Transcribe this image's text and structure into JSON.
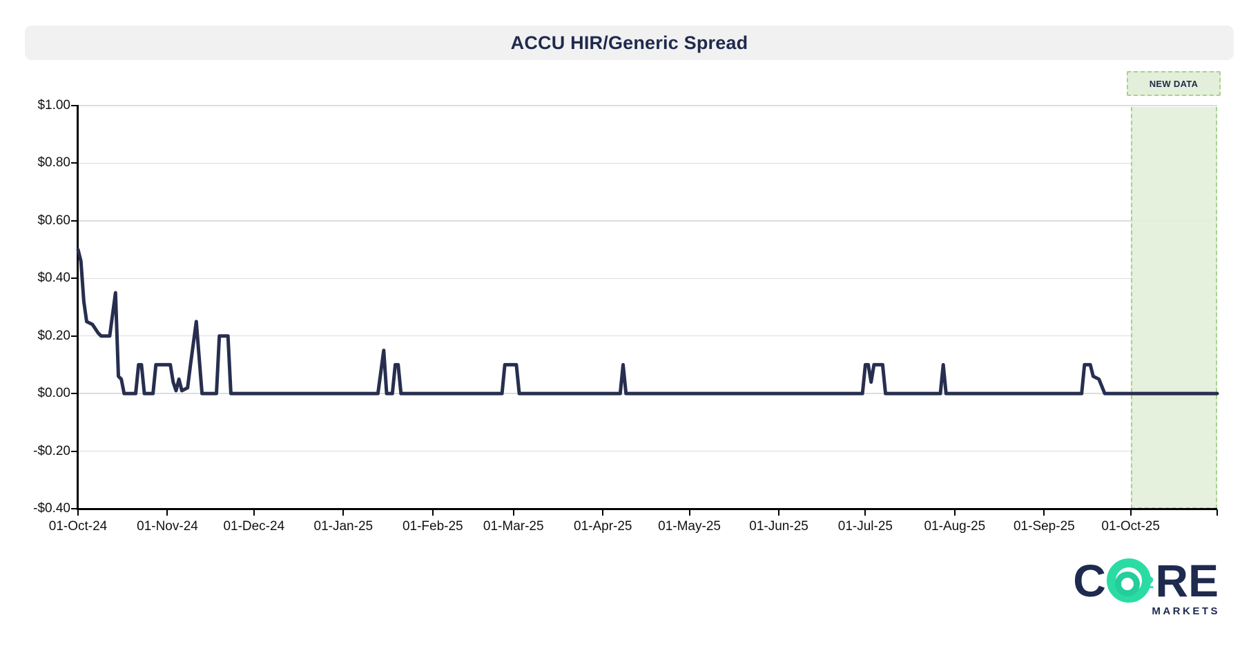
{
  "header": {
    "title": "ACCU HIR/Generic Spread"
  },
  "new_data_badge": {
    "label": "NEW DATA"
  },
  "logo": {
    "part1": "C",
    "subscript": "2",
    "part2": "RE",
    "tagline": "MARKETS"
  },
  "colors": {
    "line": "#272e4f",
    "grid": "#dcdcdc",
    "axis": "#000000",
    "banner_bg": "#f1f1f2",
    "title_text": "#1f2a4c",
    "region_fill": "#e3efda",
    "region_border": "#a6d28d",
    "badge_text": "#1f2a4c",
    "logo_navy": "#1e2a4e",
    "logo_green": "#2adca4"
  },
  "chart_data": {
    "type": "line",
    "title": "ACCU HIR/Generic Spread",
    "xlabel": "",
    "ylabel": "",
    "legend": "none",
    "grid": "horizontal",
    "x_start": "2024-10-01",
    "x_end": "2025-10-31",
    "ylim": [
      -0.4,
      1.0
    ],
    "y_ticks": [
      {
        "value": 1.0,
        "label": "$1.00"
      },
      {
        "value": 0.8,
        "label": "$0.80"
      },
      {
        "value": 0.6,
        "label": "$0.60"
      },
      {
        "value": 0.4,
        "label": "$0.40"
      },
      {
        "value": 0.2,
        "label": "$0.20"
      },
      {
        "value": 0.0,
        "label": "$0.00"
      },
      {
        "value": -0.2,
        "label": "-$0.20"
      },
      {
        "value": -0.4,
        "label": "-$0.40"
      }
    ],
    "x_ticks": [
      {
        "date": "2024-10-01",
        "label": "01-Oct-24"
      },
      {
        "date": "2024-11-01",
        "label": "01-Nov-24"
      },
      {
        "date": "2024-12-01",
        "label": "01-Dec-24"
      },
      {
        "date": "2025-01-01",
        "label": "01-Jan-25"
      },
      {
        "date": "2025-02-01",
        "label": "01-Feb-25"
      },
      {
        "date": "2025-03-01",
        "label": "01-Mar-25"
      },
      {
        "date": "2025-04-01",
        "label": "01-Apr-25"
      },
      {
        "date": "2025-05-01",
        "label": "01-May-25"
      },
      {
        "date": "2025-06-01",
        "label": "01-Jun-25"
      },
      {
        "date": "2025-07-01",
        "label": "01-Jul-25"
      },
      {
        "date": "2025-08-01",
        "label": "01-Aug-25"
      },
      {
        "date": "2025-09-01",
        "label": "01-Sep-25"
      },
      {
        "date": "2025-10-01",
        "label": "01-Oct-25"
      }
    ],
    "new_data_region": {
      "start": "2025-10-01",
      "end": "2025-10-31",
      "label": "NEW DATA"
    },
    "series": [
      {
        "name": "ACCU HIR/Generic Spread",
        "points": [
          [
            "2024-10-01",
            0.5
          ],
          [
            "2024-10-02",
            0.46
          ],
          [
            "2024-10-03",
            0.32
          ],
          [
            "2024-10-04",
            0.25
          ],
          [
            "2024-10-06",
            0.24
          ],
          [
            "2024-10-08",
            0.21
          ],
          [
            "2024-10-09",
            0.2
          ],
          [
            "2024-10-12",
            0.2
          ],
          [
            "2024-10-14",
            0.35
          ],
          [
            "2024-10-15",
            0.06
          ],
          [
            "2024-10-16",
            0.05
          ],
          [
            "2024-10-17",
            0.0
          ],
          [
            "2024-10-21",
            0.0
          ],
          [
            "2024-10-22",
            0.1
          ],
          [
            "2024-10-23",
            0.1
          ],
          [
            "2024-10-24",
            0.0
          ],
          [
            "2024-10-27",
            0.0
          ],
          [
            "2024-10-28",
            0.1
          ],
          [
            "2024-11-02",
            0.1
          ],
          [
            "2024-11-03",
            0.04
          ],
          [
            "2024-11-04",
            0.01
          ],
          [
            "2024-11-05",
            0.05
          ],
          [
            "2024-11-06",
            0.01
          ],
          [
            "2024-11-08",
            0.02
          ],
          [
            "2024-11-09",
            0.1
          ],
          [
            "2024-11-11",
            0.25
          ],
          [
            "2024-11-13",
            0.0
          ],
          [
            "2024-11-18",
            0.0
          ],
          [
            "2024-11-19",
            0.2
          ],
          [
            "2024-11-22",
            0.2
          ],
          [
            "2024-11-23",
            0.0
          ],
          [
            "2025-01-13",
            0.0
          ],
          [
            "2025-01-15",
            0.15
          ],
          [
            "2025-01-16",
            0.0
          ],
          [
            "2025-01-18",
            0.0
          ],
          [
            "2025-01-19",
            0.1
          ],
          [
            "2025-01-20",
            0.1
          ],
          [
            "2025-01-21",
            0.0
          ],
          [
            "2025-02-25",
            0.0
          ],
          [
            "2025-02-26",
            0.1
          ],
          [
            "2025-03-02",
            0.1
          ],
          [
            "2025-03-03",
            0.0
          ],
          [
            "2025-04-07",
            0.0
          ],
          [
            "2025-04-08",
            0.1
          ],
          [
            "2025-04-09",
            0.0
          ],
          [
            "2025-06-30",
            0.0
          ],
          [
            "2025-07-01",
            0.1
          ],
          [
            "2025-07-02",
            0.1
          ],
          [
            "2025-07-03",
            0.04
          ],
          [
            "2025-07-04",
            0.1
          ],
          [
            "2025-07-07",
            0.1
          ],
          [
            "2025-07-08",
            0.0
          ],
          [
            "2025-07-27",
            0.0
          ],
          [
            "2025-07-28",
            0.1
          ],
          [
            "2025-07-29",
            0.0
          ],
          [
            "2025-09-14",
            0.0
          ],
          [
            "2025-09-15",
            0.1
          ],
          [
            "2025-09-17",
            0.1
          ],
          [
            "2025-09-18",
            0.06
          ],
          [
            "2025-09-20",
            0.05
          ],
          [
            "2025-09-22",
            0.0
          ],
          [
            "2025-10-31",
            0.0
          ]
        ]
      }
    ]
  }
}
